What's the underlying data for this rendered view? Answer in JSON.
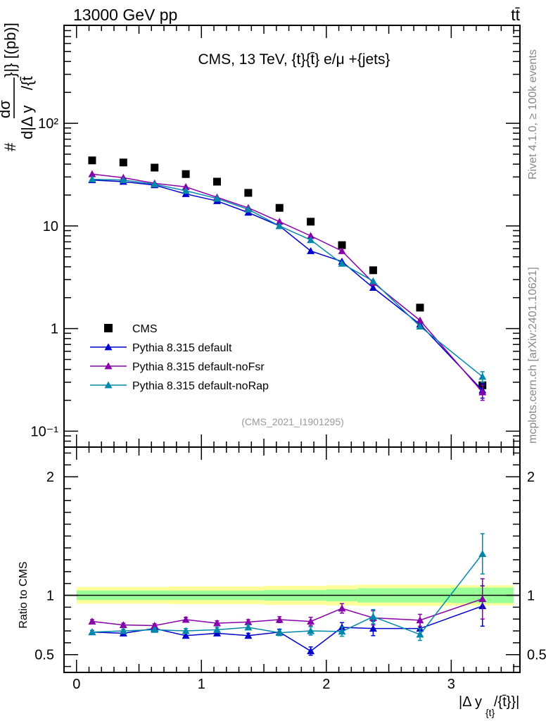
{
  "header": {
    "left": "13000 GeV pp",
    "right": "tt̄",
    "plot_title": "CMS, 13 TeV, {t}{t̄} e/μ +{jets}",
    "watermark": "(CMS_2021_I1901295)",
    "side_rivet": "Rivet 4.1.0, ≥ 100k events",
    "side_mcplots": "mcplots.cern.ch [arXiv:2401.10621]"
  },
  "labels": {
    "main_ylabel_top": "#",
    "main_ylabel_dsigma": "dσ",
    "main_ylabel_bracket": "}|} [(pb)]",
    "main_ylabel_den": "d|Δ y",
    "main_ylabel_den2": "/{t̄",
    "ratio_ylabel": "Ratio to CMS",
    "xlabel_main": "|Δ y",
    "xlabel_sub": "{t}",
    "xlabel_tail": "/{t̄}}|"
  },
  "colors": {
    "data": "#000000",
    "default": "#0000cc",
    "noFsr": "#8800aa",
    "noRap": "#0088aa",
    "band_inner": "#99ff99",
    "band_outer": "#ffff99"
  },
  "chart_data": [
    {
      "type": "scatter",
      "id": "main",
      "yscale": "log",
      "ylim": [
        0.07,
        900
      ],
      "xlim": [
        -0.1,
        3.55
      ],
      "y_ticks": [
        {
          "value": 0.1,
          "label": "10⁻¹"
        },
        {
          "value": 1,
          "label": "1"
        },
        {
          "value": 10,
          "label": "10"
        },
        {
          "value": 100,
          "label": "10²"
        }
      ],
      "x": [
        0.125,
        0.375,
        0.625,
        0.875,
        1.125,
        1.375,
        1.625,
        1.875,
        2.125,
        2.375,
        2.75,
        3.25
      ],
      "series": [
        {
          "name": "CMS",
          "marker": "square",
          "color_key": "data",
          "values": [
            43.5,
            41.5,
            37,
            32,
            27,
            21,
            15,
            11,
            6.5,
            3.7,
            1.6,
            0.28
          ],
          "errors": [
            0,
            0,
            0,
            0,
            0,
            0,
            0,
            0,
            0,
            0,
            0,
            0
          ]
        },
        {
          "name": "Pythia 8.315 default",
          "marker": "triangle",
          "color_key": "default",
          "values": [
            28,
            27,
            25,
            20.5,
            17.5,
            13.5,
            10,
            5.7,
            4.5,
            2.5,
            1.1,
            0.25
          ],
          "errors": [
            0,
            0,
            0,
            0,
            0,
            0,
            0,
            0,
            0,
            0,
            0,
            0.04
          ]
        },
        {
          "name": "Pythia 8.315 default-noFsr",
          "marker": "triangle",
          "color_key": "noFsr",
          "values": [
            32,
            29.5,
            26,
            24,
            19,
            15,
            11,
            8,
            5.7,
            2.8,
            1.2,
            0.24
          ],
          "errors": [
            0,
            0,
            0,
            0,
            0,
            0,
            0,
            0,
            0,
            0,
            0,
            0.04
          ]
        },
        {
          "name": "Pythia 8.315 default-noRap",
          "marker": "triangle",
          "color_key": "noRap",
          "values": [
            28.5,
            28,
            25.5,
            22,
            18.5,
            14.5,
            10,
            7.3,
            4.3,
            2.9,
            1.05,
            0.34
          ],
          "errors": [
            0,
            0,
            0,
            0,
            0,
            0,
            0,
            0,
            0,
            0,
            0,
            0.04
          ]
        }
      ]
    },
    {
      "type": "scatter",
      "id": "ratio",
      "yscale": "linear",
      "ylim": [
        0.35,
        2.25
      ],
      "xlim": [
        -0.1,
        3.55
      ],
      "y_ticks": [
        {
          "value": 0.5,
          "label": "0.5"
        },
        {
          "value": 1,
          "label": "1"
        },
        {
          "value": 2,
          "label": "2"
        }
      ],
      "x_ticks": [
        {
          "value": 0,
          "label": "0"
        },
        {
          "value": 1,
          "label": "1"
        },
        {
          "value": 2,
          "label": "2"
        },
        {
          "value": 3,
          "label": "3"
        }
      ],
      "x": [
        0.125,
        0.375,
        0.625,
        0.875,
        1.125,
        1.375,
        1.625,
        1.875,
        2.125,
        2.375,
        2.75,
        3.25
      ],
      "band": {
        "edges": [
          0,
          0.75,
          1.5,
          2,
          2.25,
          2.5,
          3,
          3.5
        ],
        "inner": [
          0.04,
          0.04,
          0.045,
          0.05,
          0.06,
          0.06,
          0.065,
          0.08
        ],
        "outer": [
          0.07,
          0.075,
          0.08,
          0.085,
          0.09,
          0.09,
          0.085,
          0.15
        ]
      },
      "series": [
        {
          "name": "Pythia 8.315 default",
          "color_key": "default",
          "values": [
            0.69,
            0.68,
            0.72,
            0.66,
            0.68,
            0.66,
            0.69,
            0.53,
            0.73,
            0.72,
            0.72,
            0.91
          ],
          "errors": [
            0.015,
            0.015,
            0.015,
            0.02,
            0.02,
            0.02,
            0.025,
            0.035,
            0.04,
            0.06,
            0.05,
            0.17
          ]
        },
        {
          "name": "Pythia 8.315 default-noFsr",
          "color_key": "noFsr",
          "values": [
            0.78,
            0.75,
            0.745,
            0.795,
            0.765,
            0.775,
            0.795,
            0.78,
            0.89,
            0.81,
            0.79,
            0.97
          ],
          "errors": [
            0.015,
            0.015,
            0.015,
            0.02,
            0.02,
            0.02,
            0.025,
            0.035,
            0.04,
            0.06,
            0.05,
            0.17
          ]
        },
        {
          "name": "Pythia 8.315 default-noRap",
          "color_key": "noRap",
          "values": [
            0.69,
            0.7,
            0.71,
            0.7,
            0.71,
            0.73,
            0.685,
            0.7,
            0.695,
            0.82,
            0.67,
            1.35
          ],
          "errors": [
            0.015,
            0.015,
            0.015,
            0.02,
            0.02,
            0.02,
            0.025,
            0.035,
            0.04,
            0.06,
            0.05,
            0.17
          ]
        }
      ]
    }
  ]
}
